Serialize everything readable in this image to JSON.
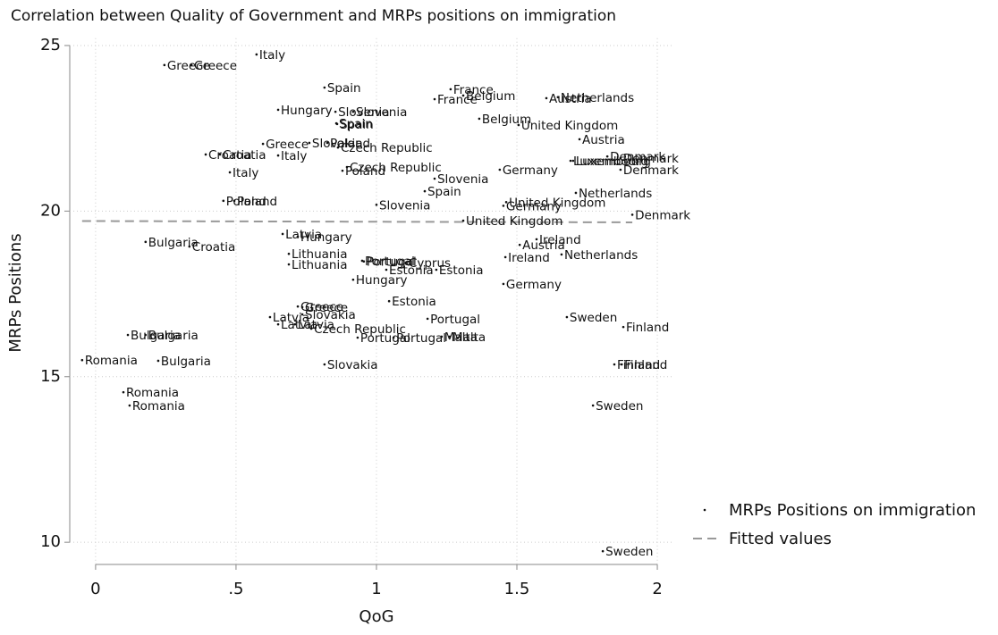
{
  "chart_data": {
    "type": "scatter",
    "title": "Correlation between Quality of Government and MRPs positions on immigration",
    "x_label": "QoG",
    "y_label": "MRPs Positions",
    "xlim": [
      -0.092,
      2.054
    ],
    "ylim": [
      9.33,
      25.22
    ],
    "xticks": [
      0,
      {
        "value": 0.5,
        "label": ".5"
      },
      1,
      1.5,
      2
    ],
    "yticks": [
      10,
      15,
      20,
      25
    ],
    "grid": true,
    "series": [
      {
        "name": "MRPs Positions on immigration",
        "color": "#111111",
        "labels": [
          "Italy",
          "Greece",
          "Greece",
          "Spain",
          "France",
          "France",
          "Belgium",
          "Belgium",
          "Austria",
          "Netherlands",
          "Austria",
          "United Kingdom",
          "Hungary",
          "Slovenia",
          "Slovenia",
          "Spain",
          "Spain",
          "Greece",
          "Slovakia",
          "Poland",
          "Czech Republic",
          "Croatia",
          "Croatia",
          "Italy",
          "Italy",
          "Czech Republic",
          "Poland",
          "Slovenia",
          "Spain",
          "Germany",
          "Denmark",
          "Denmark",
          "Luxembourg",
          "Luxembourg",
          "Denmark",
          "Netherlands",
          "Poland",
          "Poland",
          "Slovenia",
          "United Kingdom",
          "Germany",
          "Denmark",
          "United Kingdom",
          "Latvia",
          "Hungary",
          "Bulgaria",
          "Croatia",
          "Ireland",
          "Austria",
          "Lithuania",
          "Lithuania",
          "Portugal",
          "Portugal",
          "Cyprus",
          "Estonia",
          "Estonia",
          "Hungary",
          "Ireland",
          "Netherlands",
          "Germany",
          "Estonia",
          "Greece",
          "Greece",
          "Slovakia",
          "Latvia",
          "Latvia",
          "Latvia",
          "Czech Republic",
          "Portugal",
          "Portugal",
          "Portugal",
          "Malta",
          "Malta",
          "Bulgaria",
          "Bulgaria",
          "Sweden",
          "Finland",
          "Romania",
          "Bulgaria",
          "Slovakia",
          "Finland",
          "Finland",
          "Romania",
          "Romania",
          "Sweden",
          "Sweden"
        ],
        "x": [
          0.573,
          0.245,
          0.341,
          0.815,
          1.264,
          1.207,
          1.309,
          1.366,
          1.605,
          1.646,
          1.723,
          1.506,
          0.65,
          0.854,
          0.917,
          0.857,
          0.86,
          0.596,
          0.761,
          0.825,
          0.863,
          0.392,
          0.443,
          0.65,
          0.478,
          0.895,
          0.879,
          1.207,
          1.172,
          1.439,
          1.822,
          1.869,
          1.691,
          1.7,
          1.869,
          1.71,
          0.455,
          0.494,
          1.0,
          1.462,
          1.452,
          1.911,
          1.309,
          0.666,
          0.72,
          0.178,
          0.334,
          1.57,
          1.51,
          0.688,
          0.688,
          0.949,
          0.955,
          1.105,
          1.035,
          1.213,
          0.917,
          1.459,
          1.659,
          1.452,
          1.045,
          0.72,
          0.736,
          0.736,
          0.621,
          0.65,
          0.71,
          0.768,
          1.182,
          0.933,
          1.061,
          1.232,
          1.261,
          0.115,
          0.178,
          1.678,
          1.879,
          -0.048,
          0.223,
          0.815,
          1.847,
          1.873,
          0.099,
          0.121,
          1.771,
          1.806
        ],
        "values": [
          24.73,
          24.41,
          24.41,
          23.73,
          23.68,
          23.38,
          23.49,
          22.79,
          23.41,
          23.44,
          22.17,
          22.6,
          23.06,
          23.0,
          23.0,
          22.65,
          22.63,
          22.03,
          22.06,
          22.06,
          21.92,
          21.71,
          21.71,
          21.68,
          21.17,
          21.33,
          21.22,
          20.98,
          20.6,
          21.25,
          21.65,
          21.6,
          21.52,
          21.52,
          21.25,
          20.55,
          20.31,
          20.31,
          20.19,
          20.27,
          20.16,
          19.89,
          19.71,
          19.31,
          19.23,
          19.07,
          18.93,
          19.15,
          18.98,
          18.71,
          18.39,
          18.5,
          18.48,
          18.44,
          18.23,
          18.23,
          17.93,
          18.61,
          18.69,
          17.8,
          17.28,
          17.12,
          17.1,
          16.88,
          16.8,
          16.58,
          16.58,
          16.45,
          16.75,
          16.18,
          16.18,
          16.21,
          16.21,
          16.26,
          16.26,
          16.8,
          16.5,
          15.5,
          15.48,
          15.37,
          15.37,
          15.37,
          14.53,
          14.13,
          14.13,
          9.73
        ]
      },
      {
        "name": "Fitted values",
        "color": "#999999",
        "x": [
          -0.048,
          1.911
        ],
        "values": [
          19.7,
          19.66
        ]
      }
    ]
  }
}
